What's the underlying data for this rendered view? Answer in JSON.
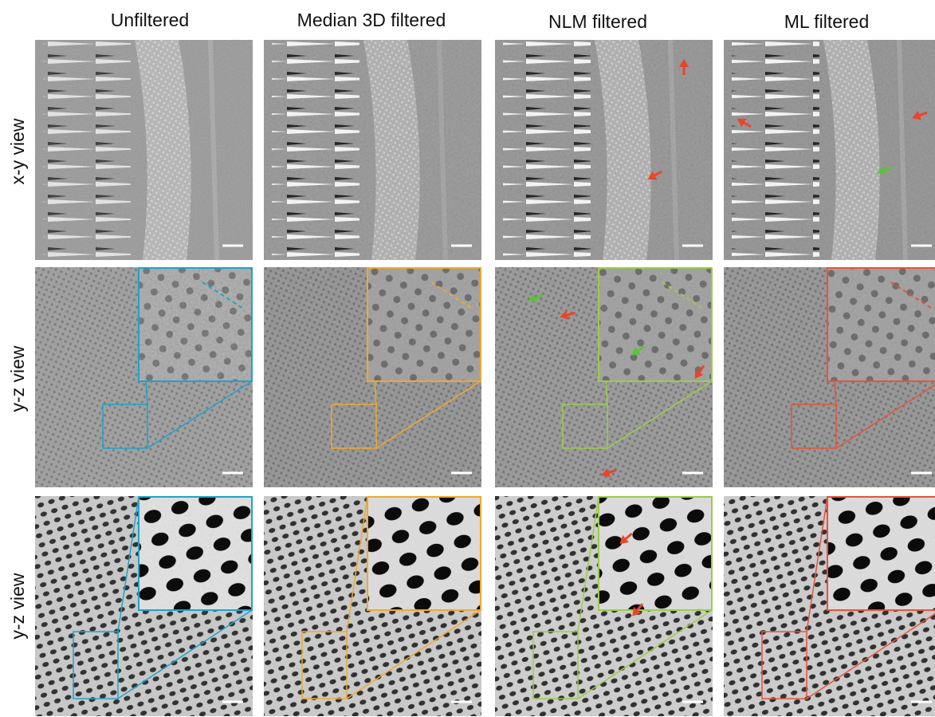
{
  "columns": [
    "Unfiltered",
    "Median 3D filtered",
    "NLM filtered",
    "ML filtered"
  ],
  "rows": [
    "x-y view",
    "y-z view",
    "y-z view"
  ]
}
